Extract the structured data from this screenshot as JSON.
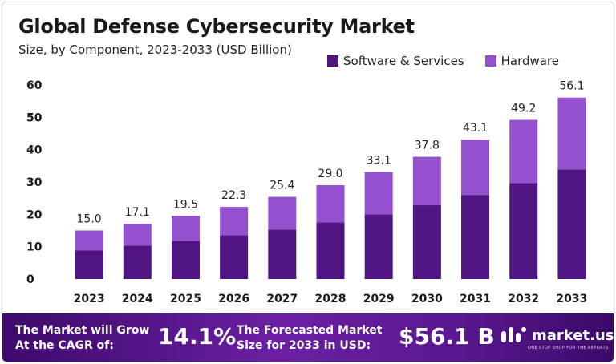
{
  "header": {
    "title": "Global Defense Cybersecurity Market",
    "subtitle": "Size, by Component, 2023-2033 (USD Billion)"
  },
  "colors": {
    "software": "#4e1583",
    "hardware": "#9550cf",
    "axis_text": "#1a1a1a"
  },
  "chart_data": {
    "type": "bar",
    "stacked": true,
    "categories": [
      "2023",
      "2024",
      "2025",
      "2026",
      "2027",
      "2028",
      "2029",
      "2030",
      "2031",
      "2032",
      "2033"
    ],
    "series": [
      {
        "name": "Software & Services",
        "values": [
          8.8,
          10.3,
          11.8,
          13.5,
          15.3,
          17.5,
          20.0,
          22.8,
          26.0,
          29.7,
          33.9
        ]
      },
      {
        "name": "Hardware",
        "values": [
          6.2,
          6.8,
          7.7,
          8.8,
          10.1,
          11.5,
          13.1,
          15.0,
          17.1,
          19.5,
          22.2
        ]
      }
    ],
    "totals": [
      "15.0",
      "17.1",
      "19.5",
      "22.3",
      "25.4",
      "29.0",
      "33.1",
      "37.8",
      "43.1",
      "49.2",
      "56.1"
    ],
    "y_ticks": [
      "0",
      "10",
      "20",
      "30",
      "40",
      "50",
      "60"
    ],
    "ylim": [
      0,
      60
    ],
    "grid": false,
    "legend_position": "top-right"
  },
  "footer": {
    "cagr_label_line1": "The Market will Grow",
    "cagr_label_line2": "At the CAGR of:",
    "cagr_value": "14.1%",
    "forecast_label_line1": "The Forecasted Market",
    "forecast_label_line2": "Size for 2033 in USD:",
    "forecast_value": "$56.1 B",
    "brand": "market.us",
    "brand_tagline": "ONE STOP SHOP FOR THE REPORTS"
  }
}
